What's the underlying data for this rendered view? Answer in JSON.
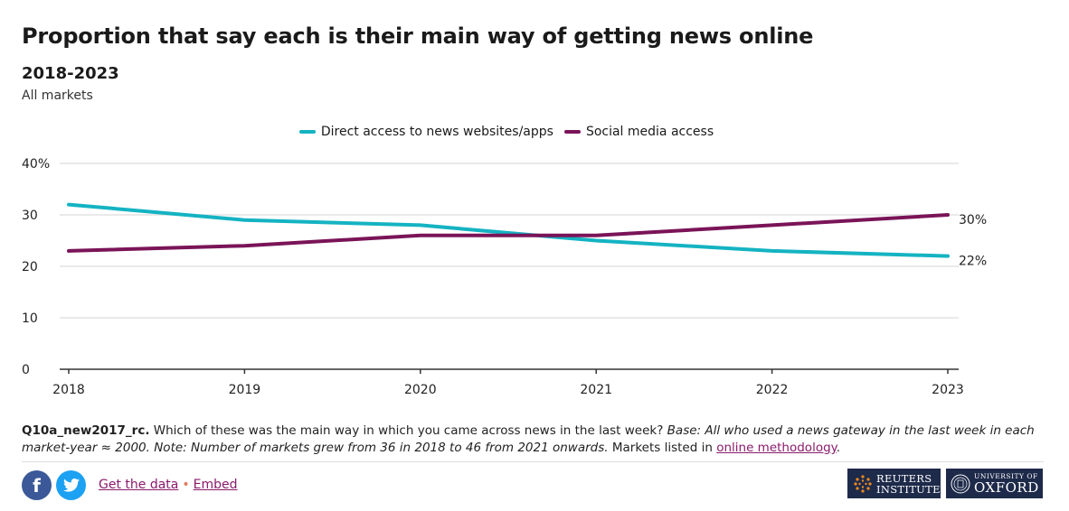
{
  "header": {
    "title": "Proportion that say each is their main way of getting news online",
    "subtitle": "2018-2023",
    "description": "All markets"
  },
  "chart_data": {
    "type": "line",
    "x": [
      "2018",
      "2019",
      "2020",
      "2021",
      "2022",
      "2023"
    ],
    "series": [
      {
        "name": "Direct access to news websites/apps",
        "color": "#14b3c2",
        "values": [
          32,
          29,
          28,
          25,
          23,
          22
        ],
        "end_label": "22%"
      },
      {
        "name": "Social media access",
        "color": "#7a1458",
        "values": [
          23,
          24,
          26,
          26,
          28,
          30
        ],
        "end_label": "30%"
      }
    ],
    "ylim": [
      0,
      40
    ],
    "yticks": [
      0,
      10,
      20,
      30,
      40
    ],
    "ytick_labels": [
      "0",
      "10",
      "20",
      "30",
      "40%"
    ],
    "legend_position": "top-center",
    "grid": true
  },
  "footnote": {
    "question_code": "Q10a_new2017_rc.",
    "question": " Which of these was the main way in which you came across news in the last week? ",
    "base_note": "Base: All who used a news gateway in the last week in each market-year ≈ 2000. Note: Number of markets grew from 36 in 2018 to 46 from 2021 onwards.",
    "markets_text": " Markets listed in ",
    "methodology_link": "online methodology",
    "period": "."
  },
  "footer": {
    "facebook_icon": "f",
    "get_data_link": "Get the data",
    "separator": "•",
    "embed_link": "Embed",
    "reuters_logo_line1": "REUTERS",
    "reuters_logo_line2": "INSTITUTE",
    "oxford_logo_line1": "UNIVERSITY OF",
    "oxford_logo_line2": "OXFORD"
  }
}
